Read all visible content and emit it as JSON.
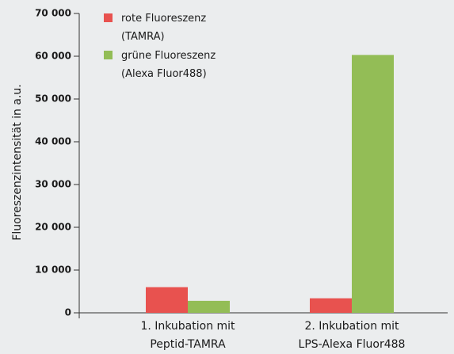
{
  "chart_data": {
    "type": "bar",
    "y_label": "Fluoreszenzintensität in a.u.",
    "categories": [
      "1. Inkubation mit\nPeptid-TAMRA",
      "2. Inkubation mit\nLPS-Alexa Fluor488"
    ],
    "series": [
      {
        "name": "rote Fluoreszenz\n(TAMRA)",
        "color": "#e8524f",
        "values": [
          6000,
          3400
        ]
      },
      {
        "name": "grüne Fluoreszenz\n(Alexa Fluor488)",
        "color": "#93bd56",
        "values": [
          2800,
          60300
        ]
      }
    ],
    "ylim": [
      0,
      70000
    ],
    "yticks": [
      0,
      {
        "value": 10000,
        "label": "10 000"
      },
      {
        "value": 20000,
        "label": "20 000"
      },
      {
        "value": 30000,
        "label": "30 000"
      },
      {
        "value": 40000,
        "label": "40 000"
      },
      {
        "value": 50000,
        "label": "50 000"
      },
      {
        "value": 60000,
        "label": "60 000"
      },
      {
        "value": 70000,
        "label": "70 000"
      }
    ],
    "legend": "top-left"
  }
}
